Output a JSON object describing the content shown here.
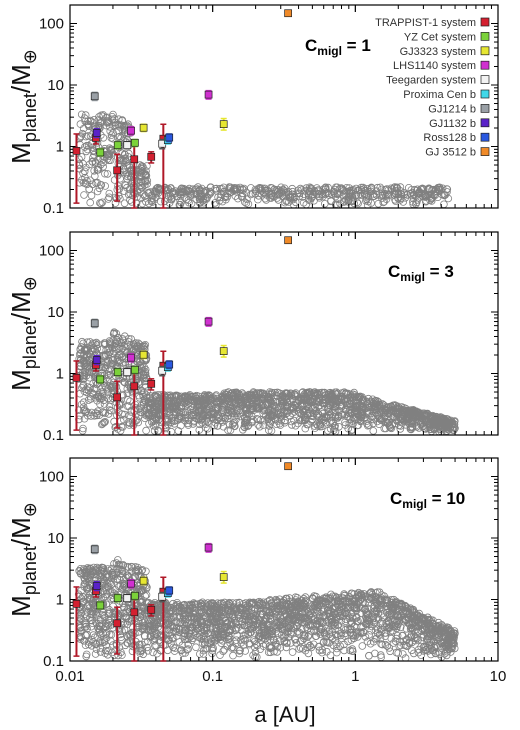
{
  "chart_data": {
    "type": "scatter",
    "xscale": "log",
    "yscale": "log",
    "xlim": [
      0.01,
      10
    ],
    "ylim": [
      0.1,
      200
    ],
    "xticks": [
      0.01,
      0.1,
      1,
      10
    ],
    "xtick_labels": [
      "0.01",
      "0.1",
      "1",
      "10"
    ],
    "yticks": [
      0.1,
      1,
      10,
      100
    ],
    "ytick_labels": [
      "0.1",
      "1",
      "10",
      "100"
    ],
    "xlabel": "a [AU]",
    "ylabel_main": "M",
    "ylabel_sub1": "planet",
    "ylabel_mid": "/M",
    "ylabel_sub2": "⊕",
    "legend_position": "top-right",
    "panels": [
      {
        "label_main": "C",
        "label_sub": "migl",
        "label_value": " = 1",
        "sim_max_mass": 0.35
      },
      {
        "label_main": "C",
        "label_sub": "migl",
        "label_value": " = 3",
        "sim_max_mass": 0.7
      },
      {
        "label_main": "C",
        "label_sub": "migl",
        "label_value": " = 10",
        "sim_max_mass": 1.3
      }
    ],
    "series": [
      {
        "name": "TRAPPIST-1 system",
        "color": "#d42030",
        "points": [
          {
            "a": 0.0111,
            "m": 0.85,
            "lo": 0.12,
            "hi": 1.6
          },
          {
            "a": 0.0152,
            "m": 1.38,
            "lo": 1.1,
            "hi": 1.65
          },
          {
            "a": 0.0214,
            "m": 0.41,
            "lo": 0.13,
            "hi": 0.75
          },
          {
            "a": 0.0282,
            "m": 0.62,
            "lo": 0.1,
            "hi": 1.2
          },
          {
            "a": 0.0371,
            "m": 0.68,
            "lo": 0.54,
            "hi": 0.82
          },
          {
            "a": 0.0451,
            "m": 1.34,
            "lo": 0.1,
            "hi": 2.3
          }
        ]
      },
      {
        "name": "YZ Cet system",
        "color": "#7bd23a",
        "points": [
          {
            "a": 0.0163,
            "m": 0.8,
            "lo": 0.7,
            "hi": 0.92
          },
          {
            "a": 0.0216,
            "m": 1.05,
            "lo": 0.92,
            "hi": 1.2
          },
          {
            "a": 0.0285,
            "m": 1.15,
            "lo": 1.0,
            "hi": 1.3
          }
        ]
      },
      {
        "name": "GJ3323 system",
        "color": "#e6e632",
        "points": [
          {
            "a": 0.0328,
            "m": 2.02,
            "lo": 1.75,
            "hi": 2.3
          },
          {
            "a": 0.1195,
            "m": 2.31,
            "lo": 1.85,
            "hi": 2.85
          }
        ]
      },
      {
        "name": "LHS1140 system",
        "color": "#d030d0",
        "points": [
          {
            "a": 0.0268,
            "m": 1.81,
            "lo": 1.55,
            "hi": 2.1
          },
          {
            "a": 0.0936,
            "m": 6.98,
            "lo": 5.9,
            "hi": 8.1
          }
        ]
      },
      {
        "name": "Teegarden system",
        "color": "#f2f2f2",
        "points": [
          {
            "a": 0.0252,
            "m": 1.05,
            "lo": 0.92,
            "hi": 1.2
          },
          {
            "a": 0.0443,
            "m": 1.11,
            "lo": 0.92,
            "hi": 1.3
          }
        ]
      },
      {
        "name": "Proxima Cen b",
        "color": "#40d8e8",
        "points": [
          {
            "a": 0.0485,
            "m": 1.27,
            "lo": 1.1,
            "hi": 1.45
          }
        ]
      },
      {
        "name": "GJ1214 b",
        "color": "#9aa0a6",
        "points": [
          {
            "a": 0.0149,
            "m": 6.55,
            "lo": 5.6,
            "hi": 7.6
          }
        ]
      },
      {
        "name": "GJ1132 b",
        "color": "#5a22c8",
        "points": [
          {
            "a": 0.0154,
            "m": 1.66,
            "lo": 1.4,
            "hi": 1.95
          }
        ]
      },
      {
        "name": "Ross128 b",
        "color": "#2a58e0",
        "points": [
          {
            "a": 0.0496,
            "m": 1.4,
            "lo": 1.2,
            "hi": 1.6
          }
        ]
      },
      {
        "name": "GJ 3512 b",
        "color": "#f08a28",
        "points": [
          {
            "a": 0.338,
            "m": 147,
            "lo": 140,
            "hi": 155
          }
        ]
      }
    ]
  }
}
